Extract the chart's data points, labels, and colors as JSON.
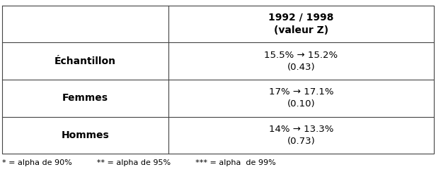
{
  "col_header": "1992 / 1998\n(valeur Z)",
  "rows": [
    {
      "label": "Échantillon",
      "value": "15.5% → 15.2%\n(0.43)"
    },
    {
      "label": "Femmes",
      "value": "17% → 17.1%\n(0.10)"
    },
    {
      "label": "Hommes",
      "value": "14% → 13.3%\n(0.73)"
    }
  ],
  "footnote": "* = alpha de 90%          ** = alpha de 95%          *** = alpha  de 99%",
  "col_split": 0.385,
  "background": "#ffffff",
  "line_color": "#444444",
  "label_fontsize": 10,
  "header_fontsize": 10,
  "value_fontsize": 9.5,
  "footnote_fontsize": 8
}
